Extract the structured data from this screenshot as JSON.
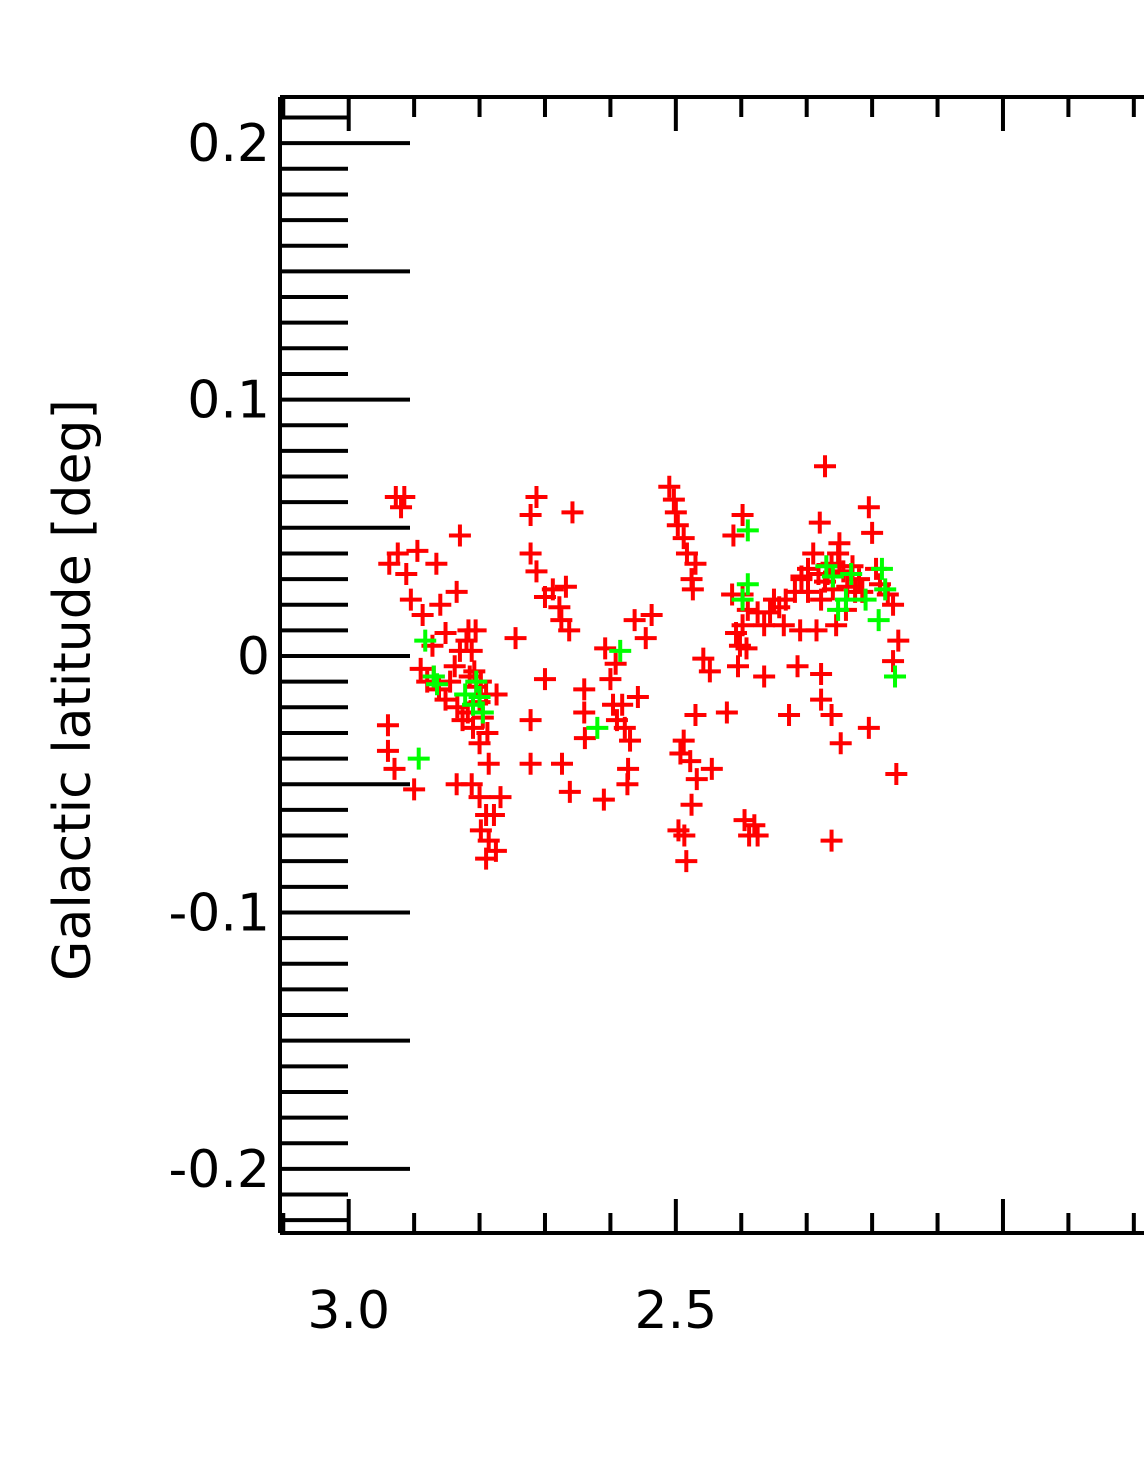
{
  "chart_data": {
    "type": "scatter",
    "title": "",
    "xlabel": "",
    "ylabel": "Galactic latitude [deg]",
    "xlim": [
      3.105,
      1.76
    ],
    "ylim": [
      -0.225,
      0.218
    ],
    "x_reversed": true,
    "x_ticks": [
      {
        "value": 3.0,
        "label": "3.0"
      },
      {
        "value": 2.5,
        "label": "2.5"
      }
    ],
    "y_ticks": [
      {
        "value": 0.2,
        "label": "0.2"
      },
      {
        "value": 0.1,
        "label": "0.1"
      },
      {
        "value": 0.0,
        "label": "0"
      },
      {
        "value": -0.1,
        "label": "-0.1"
      },
      {
        "value": -0.2,
        "label": "-0.2"
      }
    ],
    "grid": false,
    "series": [
      {
        "color": "#ff0000",
        "marker": "plus",
        "points": [
          [
            2.928,
            0.062
          ],
          [
            2.915,
            0.062
          ],
          [
            2.92,
            0.058
          ],
          [
            2.938,
            0.036
          ],
          [
            2.925,
            0.04
          ],
          [
            2.912,
            0.032
          ],
          [
            2.905,
            0.022
          ],
          [
            2.895,
            0.041
          ],
          [
            2.866,
            0.036
          ],
          [
            2.86,
            0.02
          ],
          [
            2.852,
            0.009
          ],
          [
            2.887,
            0.016
          ],
          [
            2.872,
            0.004
          ],
          [
            2.89,
            -0.005
          ],
          [
            2.88,
            -0.01
          ],
          [
            2.87,
            -0.008
          ],
          [
            2.862,
            -0.013
          ],
          [
            2.852,
            -0.017
          ],
          [
            2.845,
            -0.01
          ],
          [
            2.838,
            -0.004
          ],
          [
            2.83,
            0.002
          ],
          [
            2.82,
            0.006
          ],
          [
            2.812,
            0.002
          ],
          [
            2.808,
            -0.006
          ],
          [
            2.805,
            -0.012
          ],
          [
            2.8,
            -0.018
          ],
          [
            2.818,
            -0.022
          ],
          [
            2.826,
            -0.025
          ],
          [
            2.834,
            -0.02
          ],
          [
            2.81,
            -0.028
          ],
          [
            2.795,
            -0.024
          ],
          [
            2.788,
            -0.03
          ],
          [
            2.8,
            -0.034
          ],
          [
            2.79,
            -0.015
          ],
          [
            2.815,
            -0.008
          ],
          [
            2.806,
            0.01
          ],
          [
            2.817,
            0.01
          ],
          [
            2.798,
            -0.01
          ],
          [
            2.774,
            -0.015
          ],
          [
            2.786,
            -0.042
          ],
          [
            2.83,
            0.047
          ],
          [
            2.835,
            0.025
          ],
          [
            2.94,
            -0.027
          ],
          [
            2.94,
            -0.037
          ],
          [
            2.93,
            -0.044
          ],
          [
            2.9,
            -0.052
          ],
          [
            2.835,
            -0.05
          ],
          [
            2.812,
            -0.05
          ],
          [
            2.8,
            -0.055
          ],
          [
            2.79,
            -0.062
          ],
          [
            2.778,
            -0.062
          ],
          [
            2.798,
            -0.068
          ],
          [
            2.786,
            -0.072
          ],
          [
            2.775,
            -0.076
          ],
          [
            2.79,
            -0.079
          ],
          [
            2.768,
            -0.055
          ],
          [
            2.745,
            0.007
          ],
          [
            2.722,
            0.055
          ],
          [
            2.713,
            0.062
          ],
          [
            2.722,
            0.04
          ],
          [
            2.713,
            0.033
          ],
          [
            2.7,
            0.023
          ],
          [
            2.688,
            0.026
          ],
          [
            2.678,
            0.019
          ],
          [
            2.668,
            0.027
          ],
          [
            2.675,
            0.014
          ],
          [
            2.663,
            0.01
          ],
          [
            2.658,
            0.056
          ],
          [
            2.722,
            -0.025
          ],
          [
            2.722,
            -0.042
          ],
          [
            2.7,
            -0.009
          ],
          [
            2.674,
            -0.042
          ],
          [
            2.662,
            -0.053
          ],
          [
            2.639,
            -0.032
          ],
          [
            2.64,
            -0.022
          ],
          [
            2.64,
            -0.013
          ],
          [
            2.61,
            -0.056
          ],
          [
            2.608,
            0.003
          ],
          [
            2.6,
            -0.009
          ],
          [
            2.592,
            -0.003
          ],
          [
            2.596,
            -0.019
          ],
          [
            2.59,
            -0.025
          ],
          [
            2.582,
            -0.019
          ],
          [
            2.578,
            -0.028
          ],
          [
            2.57,
            -0.033
          ],
          [
            2.558,
            -0.016
          ],
          [
            2.573,
            -0.044
          ],
          [
            2.574,
            -0.05
          ],
          [
            2.563,
            0.014
          ],
          [
            2.546,
            0.007
          ],
          [
            2.537,
            0.016
          ],
          [
            2.51,
            0.066
          ],
          [
            2.503,
            0.061
          ],
          [
            2.5,
            0.056
          ],
          [
            2.497,
            0.051
          ],
          [
            2.488,
            0.046
          ],
          [
            2.483,
            0.04
          ],
          [
            2.47,
            0.036
          ],
          [
            2.476,
            0.03
          ],
          [
            2.474,
            0.026
          ],
          [
            2.458,
            -0.001
          ],
          [
            2.47,
            -0.023
          ],
          [
            2.488,
            -0.033
          ],
          [
            2.493,
            -0.038
          ],
          [
            2.478,
            -0.041
          ],
          [
            2.468,
            -0.048
          ],
          [
            2.476,
            -0.058
          ],
          [
            2.496,
            -0.068
          ],
          [
            2.487,
            -0.07
          ],
          [
            2.484,
            -0.08
          ],
          [
            2.448,
            -0.006
          ],
          [
            2.422,
            -0.022
          ],
          [
            2.445,
            -0.044
          ],
          [
            2.395,
            -0.064
          ],
          [
            2.388,
            -0.07
          ],
          [
            2.38,
            -0.066
          ],
          [
            2.375,
            -0.07
          ],
          [
            2.398,
            0.055
          ],
          [
            2.412,
            0.047
          ],
          [
            2.414,
            0.024
          ],
          [
            2.398,
            0.024
          ],
          [
            2.39,
            0.018
          ],
          [
            2.398,
            0.012
          ],
          [
            2.408,
            0.009
          ],
          [
            2.402,
            0.004
          ],
          [
            2.375,
            0.017
          ],
          [
            2.365,
            0.012
          ],
          [
            2.356,
            0.017
          ],
          [
            2.35,
            0.022
          ],
          [
            2.342,
            0.019
          ],
          [
            2.332,
            0.022
          ],
          [
            2.318,
            0.025
          ],
          [
            2.308,
            0.031
          ],
          [
            2.298,
            0.034
          ],
          [
            2.29,
            0.04
          ],
          [
            2.282,
            0.032
          ],
          [
            2.272,
            0.029
          ],
          [
            2.262,
            0.036
          ],
          [
            2.252,
            0.04
          ],
          [
            2.244,
            0.033
          ],
          [
            2.238,
            0.027
          ],
          [
            2.278,
            0.022
          ],
          [
            2.268,
            0.032
          ],
          [
            2.26,
            0.026
          ],
          [
            2.25,
            0.035
          ],
          [
            2.23,
            0.035
          ],
          [
            2.226,
            0.025
          ],
          [
            2.22,
            0.03
          ],
          [
            2.285,
            0.01
          ],
          [
            2.392,
            0.003
          ],
          [
            2.405,
            -0.004
          ],
          [
            2.365,
            -0.008
          ],
          [
            2.335,
            0.012
          ],
          [
            2.314,
            -0.004
          ],
          [
            2.31,
            0.01
          ],
          [
            2.25,
            0.044
          ],
          [
            2.28,
            0.052
          ],
          [
            2.272,
            0.074
          ],
          [
            2.205,
            0.058
          ],
          [
            2.2,
            0.048
          ],
          [
            2.194,
            0.034
          ],
          [
            2.188,
            0.028
          ],
          [
            2.176,
            0.024
          ],
          [
            2.168,
            0.02
          ],
          [
            2.16,
            0.006
          ],
          [
            2.168,
            -0.002
          ],
          [
            2.278,
            -0.017
          ],
          [
            2.262,
            -0.023
          ],
          [
            2.248,
            -0.034
          ],
          [
            2.278,
            -0.007
          ],
          [
            2.327,
            -0.023
          ],
          [
            2.262,
            -0.072
          ],
          [
            2.205,
            -0.028
          ],
          [
            2.163,
            -0.046
          ],
          [
            2.308,
            0.03
          ],
          [
            2.298,
            0.025
          ],
          [
            2.24,
            0.018
          ],
          [
            2.255,
            0.012
          ],
          [
            2.215,
            0.025
          ]
        ]
      },
      {
        "color": "#00ff00",
        "marker": "plus",
        "points": [
          [
            2.883,
            0.006
          ],
          [
            2.87,
            -0.008
          ],
          [
            2.865,
            -0.011
          ],
          [
            2.893,
            -0.04
          ],
          [
            2.805,
            -0.01
          ],
          [
            2.8,
            -0.016
          ],
          [
            2.795,
            -0.022
          ],
          [
            2.81,
            -0.019
          ],
          [
            2.822,
            -0.015
          ],
          [
            2.62,
            -0.028
          ],
          [
            2.585,
            0.002
          ],
          [
            2.39,
            0.049
          ],
          [
            2.39,
            0.028
          ],
          [
            2.398,
            0.022
          ],
          [
            2.27,
            0.035
          ],
          [
            2.26,
            0.031
          ],
          [
            2.252,
            0.018
          ],
          [
            2.24,
            0.022
          ],
          [
            2.232,
            0.032
          ],
          [
            2.185,
            0.034
          ],
          [
            2.18,
            0.026
          ],
          [
            2.21,
            0.022
          ],
          [
            2.19,
            0.014
          ],
          [
            2.165,
            -0.008
          ]
        ]
      }
    ]
  }
}
